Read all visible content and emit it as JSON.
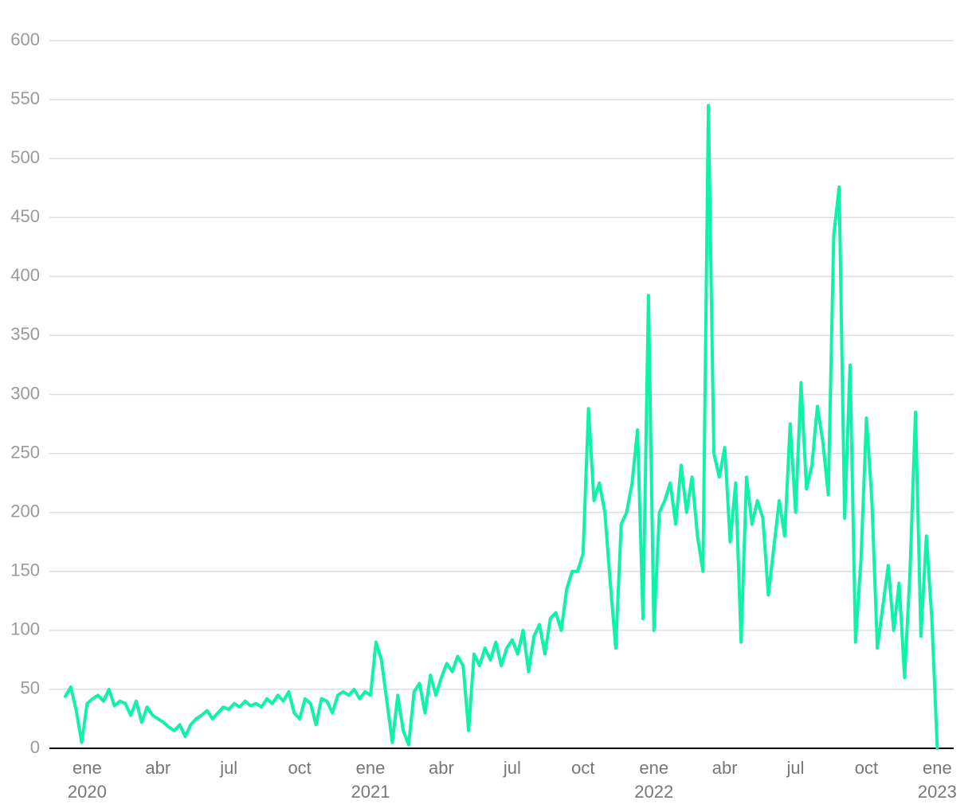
{
  "chart_data": {
    "type": "line",
    "categories": [
      null,
      null,
      null,
      null,
      "ene\n2020",
      null,
      null,
      null,
      null,
      null,
      null,
      null,
      null,
      null,
      null,
      null,
      null,
      "abr",
      null,
      null,
      null,
      null,
      null,
      null,
      null,
      null,
      null,
      null,
      null,
      null,
      "jul",
      null,
      null,
      null,
      null,
      null,
      null,
      null,
      null,
      null,
      null,
      null,
      null,
      "oct",
      null,
      null,
      null,
      null,
      null,
      null,
      null,
      null,
      null,
      null,
      null,
      null,
      "ene\n2021",
      null,
      null,
      null,
      null,
      null,
      null,
      null,
      null,
      null,
      null,
      null,
      null,
      "abr",
      null,
      null,
      null,
      null,
      null,
      null,
      null,
      null,
      null,
      null,
      null,
      null,
      "jul",
      null,
      null,
      null,
      null,
      null,
      null,
      null,
      null,
      null,
      null,
      null,
      null,
      "oct",
      null,
      null,
      null,
      null,
      null,
      null,
      null,
      null,
      null,
      null,
      null,
      null,
      "ene\n2022",
      null,
      null,
      null,
      null,
      null,
      null,
      null,
      null,
      null,
      null,
      null,
      null,
      "abr",
      null,
      null,
      null,
      null,
      null,
      null,
      null,
      null,
      null,
      null,
      null,
      null,
      "jul",
      null,
      null,
      null,
      null,
      null,
      null,
      null,
      null,
      null,
      null,
      null,
      null,
      "oct",
      null,
      null,
      null,
      null,
      null,
      null,
      null,
      null,
      null,
      null,
      null,
      null,
      "ene\n2023"
    ],
    "values": [
      44,
      52,
      32,
      5,
      38,
      42,
      45,
      40,
      50,
      36,
      40,
      38,
      28,
      40,
      22,
      35,
      28,
      25,
      22,
      18,
      15,
      20,
      10,
      20,
      25,
      28,
      32,
      25,
      30,
      35,
      33,
      38,
      35,
      40,
      36,
      38,
      35,
      42,
      38,
      45,
      40,
      48,
      30,
      25,
      42,
      38,
      20,
      42,
      40,
      30,
      45,
      48,
      45,
      50,
      42,
      48,
      45,
      90,
      75,
      40,
      5,
      45,
      15,
      3,
      48,
      55,
      30,
      62,
      45,
      60,
      72,
      65,
      78,
      70,
      15,
      80,
      70,
      85,
      75,
      90,
      70,
      85,
      92,
      80,
      100,
      65,
      95,
      105,
      80,
      110,
      115,
      100,
      135,
      150,
      150,
      165,
      288,
      210,
      225,
      200,
      140,
      85,
      190,
      200,
      225,
      270,
      110,
      384,
      100,
      200,
      210,
      225,
      190,
      240,
      200,
      230,
      180,
      150,
      545,
      250,
      230,
      255,
      175,
      225,
      90,
      230,
      190,
      210,
      195,
      130,
      170,
      210,
      180,
      275,
      200,
      310,
      220,
      240,
      290,
      260,
      215,
      435,
      476,
      195,
      325,
      90,
      160,
      280,
      210,
      85,
      120,
      155,
      100,
      140,
      60,
      150,
      285,
      95,
      180,
      110,
      0
    ],
    "color": "#0ef3a9",
    "ylim": [
      0,
      600
    ],
    "yticks": [
      0,
      50,
      100,
      150,
      200,
      250,
      300,
      350,
      400,
      450,
      500,
      550,
      600
    ],
    "grid": true
  }
}
